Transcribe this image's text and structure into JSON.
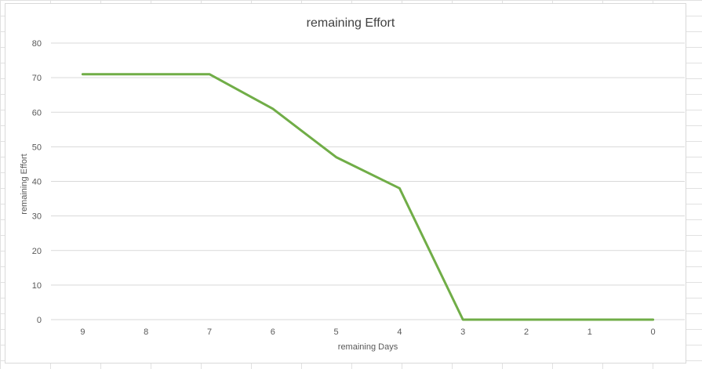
{
  "chart_data": {
    "type": "line",
    "title": "remaining Effort",
    "xlabel": "remaining Days",
    "ylabel": "remaining Effort",
    "categories": [
      "9",
      "8",
      "7",
      "6",
      "5",
      "4",
      "3",
      "2",
      "1",
      "0"
    ],
    "series": [
      {
        "values": [
          71,
          71,
          71,
          61,
          47,
          38,
          0,
          0,
          0,
          0
        ],
        "color": "#70ad47"
      }
    ],
    "ylim": [
      0,
      80
    ],
    "yticks": [
      "0",
      "10",
      "20",
      "30",
      "40",
      "50",
      "60",
      "70",
      "80"
    ],
    "grid": true,
    "legend": "none"
  },
  "colors": {
    "gridline": "#d9d9d9",
    "text": "#595959",
    "title": "#404040",
    "sheet_grid": "#e1e1e1"
  }
}
